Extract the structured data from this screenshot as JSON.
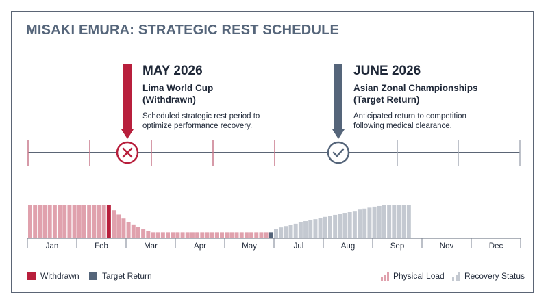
{
  "title": "MISAKI EMURA: STRATEGIC REST SCHEDULE",
  "events": [
    {
      "date": "MAY 2026",
      "name_line1": "Lima World Cup",
      "name_line2": "(Withdrawn)",
      "desc_line1": "Scheduled strategic rest period to",
      "desc_line2": "optimize performance recovery.",
      "status": "withdrawn",
      "icon": "x-circle-icon"
    },
    {
      "date": "JUNE 2026",
      "name_line1": "Asian Zonal Championships",
      "name_line2": "(Target Return)",
      "desc_line1": "Anticipated return to competition",
      "desc_line2": "following medical clearance.",
      "status": "target-return",
      "icon": "check-circle-icon"
    }
  ],
  "months": [
    "Jan",
    "Feb",
    "Mar",
    "Apr",
    "May",
    "Jul",
    "Aug",
    "Sep",
    "Nov",
    "Dec"
  ],
  "legend": {
    "withdrawn": "Withdrawn",
    "target_return": "Target Return",
    "physical_load": "Physical Load",
    "recovery_status": "Recovery Status"
  },
  "colors": {
    "withdrawn": "#b81f3c",
    "target_return": "#55657a",
    "physical_load": "#e0a1ad",
    "recovery_status": "#c4c9d1",
    "axis": "#5b6575",
    "tick_red": "#c9798a"
  },
  "chart_data": {
    "type": "bar",
    "series": [
      {
        "name": "Physical Load",
        "values": [
          1.0,
          1.0,
          1.0,
          1.0,
          1.0,
          1.0,
          1.0,
          1.0,
          1.0,
          1.0,
          1.0,
          1.0,
          1.0,
          1.0,
          1.0,
          1.0,
          1.0,
          0.85,
          0.72,
          0.6,
          0.5,
          0.42,
          0.34,
          0.27,
          0.21,
          0.18,
          0.18,
          0.18,
          0.18,
          0.18,
          0.18,
          0.18,
          0.18,
          0.18,
          0.18,
          0.18,
          0.18,
          0.18,
          0.18,
          0.18,
          0.18,
          0.18,
          0.18,
          0.18,
          0.18,
          0.18,
          0.18,
          0.18,
          0.18,
          0.18
        ]
      },
      {
        "name": "Recovery Status",
        "values": [
          0.28,
          0.33,
          0.37,
          0.41,
          0.44,
          0.48,
          0.52,
          0.55,
          0.58,
          0.62,
          0.65,
          0.68,
          0.71,
          0.74,
          0.77,
          0.8,
          0.83,
          0.87,
          0.9,
          0.93,
          0.96,
          0.98,
          1.0,
          1.0,
          1.0,
          1.0,
          1.0,
          1.0
        ]
      }
    ],
    "highlights": {
      "withdrawn_bar_index": 16,
      "target_return_bar_index": 49
    },
    "ylim": [
      0,
      1
    ]
  }
}
